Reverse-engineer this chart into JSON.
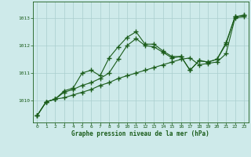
{
  "title": "Graphe pression niveau de la mer (hPa)",
  "background_color": "#ceeaea",
  "grid_color": "#aacece",
  "line_color": "#1a5c1a",
  "xlim": [
    -0.5,
    23.5
  ],
  "ylim": [
    1009.2,
    1013.6
  ],
  "xticks": [
    0,
    1,
    2,
    3,
    4,
    5,
    6,
    7,
    8,
    9,
    10,
    11,
    12,
    13,
    14,
    15,
    16,
    17,
    18,
    19,
    20,
    21,
    22,
    23
  ],
  "yticks": [
    1010,
    1011,
    1012,
    1013
  ],
  "series1": [
    [
      0,
      1009.45
    ],
    [
      1,
      1009.95
    ],
    [
      2,
      1010.05
    ],
    [
      3,
      1010.1
    ],
    [
      4,
      1010.2
    ],
    [
      5,
      1010.3
    ],
    [
      6,
      1010.4
    ],
    [
      7,
      1010.55
    ],
    [
      8,
      1010.65
    ],
    [
      9,
      1010.8
    ],
    [
      10,
      1010.9
    ],
    [
      11,
      1011.0
    ],
    [
      12,
      1011.1
    ],
    [
      13,
      1011.2
    ],
    [
      14,
      1011.3
    ],
    [
      15,
      1011.4
    ],
    [
      16,
      1011.5
    ],
    [
      17,
      1011.55
    ],
    [
      18,
      1011.3
    ],
    [
      19,
      1011.35
    ],
    [
      20,
      1011.4
    ],
    [
      21,
      1011.7
    ],
    [
      22,
      1013.0
    ],
    [
      23,
      1013.05
    ]
  ],
  "series2": [
    [
      0,
      1009.45
    ],
    [
      1,
      1009.95
    ],
    [
      2,
      1010.05
    ],
    [
      3,
      1010.3
    ],
    [
      4,
      1010.4
    ],
    [
      5,
      1010.55
    ],
    [
      6,
      1010.65
    ],
    [
      7,
      1010.8
    ],
    [
      8,
      1011.0
    ],
    [
      9,
      1011.5
    ],
    [
      10,
      1012.0
    ],
    [
      11,
      1012.25
    ],
    [
      12,
      1012.0
    ],
    [
      13,
      1011.95
    ],
    [
      14,
      1011.75
    ],
    [
      15,
      1011.55
    ],
    [
      16,
      1011.6
    ],
    [
      17,
      1011.1
    ],
    [
      18,
      1011.45
    ],
    [
      19,
      1011.4
    ],
    [
      20,
      1011.5
    ],
    [
      21,
      1012.05
    ],
    [
      22,
      1013.05
    ],
    [
      23,
      1013.1
    ]
  ],
  "series3": [
    [
      0,
      1009.45
    ],
    [
      1,
      1009.95
    ],
    [
      2,
      1010.05
    ],
    [
      3,
      1010.35
    ],
    [
      4,
      1010.45
    ],
    [
      5,
      1011.0
    ],
    [
      6,
      1011.1
    ],
    [
      7,
      1010.9
    ],
    [
      8,
      1011.55
    ],
    [
      9,
      1011.95
    ],
    [
      10,
      1012.3
    ],
    [
      11,
      1012.5
    ],
    [
      12,
      1012.05
    ],
    [
      13,
      1012.05
    ],
    [
      14,
      1011.8
    ],
    [
      15,
      1011.6
    ],
    [
      16,
      1011.6
    ],
    [
      17,
      1011.1
    ],
    [
      18,
      1011.45
    ],
    [
      19,
      1011.4
    ],
    [
      20,
      1011.5
    ],
    [
      21,
      1012.1
    ],
    [
      22,
      1013.05
    ],
    [
      23,
      1013.1
    ]
  ]
}
